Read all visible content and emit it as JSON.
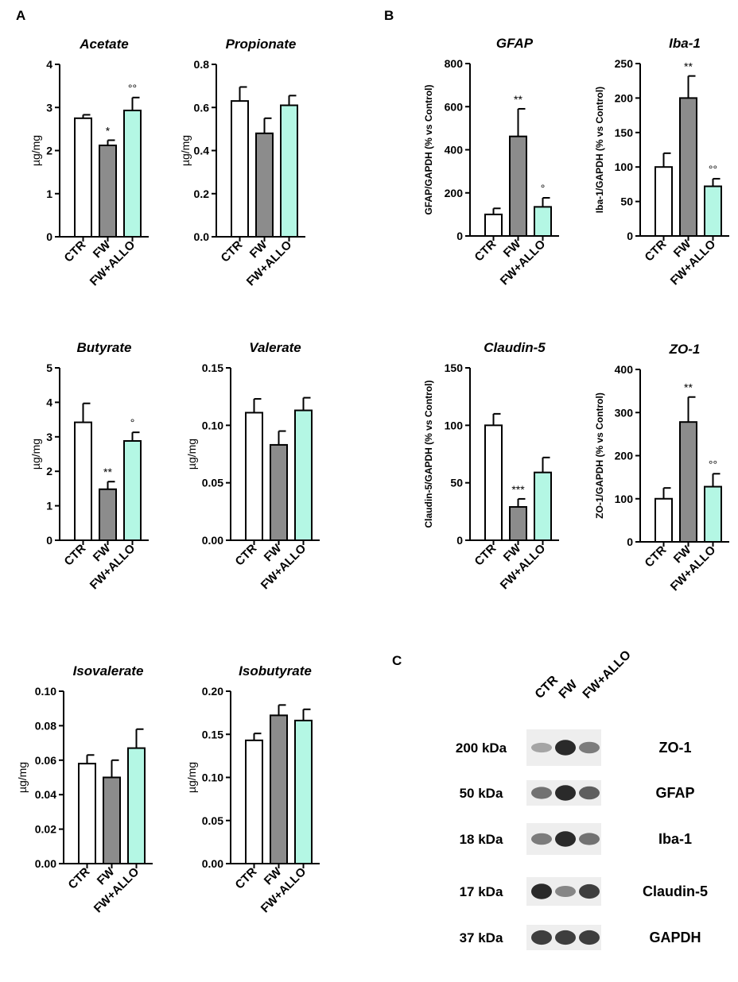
{
  "panels": {
    "a": "A",
    "b": "B",
    "c": "C"
  },
  "colors": {
    "ctr": "#ffffff",
    "fw": "#8c8c8c",
    "allo": "#b4f7e4",
    "stroke": "#000000"
  },
  "chart_data": [
    {
      "id": "acetate",
      "type": "bar",
      "title": "Acetate",
      "ylabel": "µg/mg",
      "categories": [
        "CTR",
        "FW",
        "FW+ALLO"
      ],
      "values": [
        2.75,
        2.12,
        2.93
      ],
      "errors": [
        0.08,
        0.12,
        0.3
      ],
      "sig": [
        "",
        "*",
        "°°"
      ],
      "ylim": [
        0,
        4
      ],
      "ticks": [
        "0",
        "1",
        "2",
        "3",
        "4"
      ]
    },
    {
      "id": "propionate",
      "type": "bar",
      "title": "Propionate",
      "ylabel": "µg/mg",
      "categories": [
        "CTR",
        "FW",
        "FW+ALLO"
      ],
      "values": [
        0.63,
        0.48,
        0.61
      ],
      "errors": [
        0.065,
        0.07,
        0.045
      ],
      "sig": [
        "",
        "",
        ""
      ],
      "ylim": [
        0,
        0.8
      ],
      "ticks": [
        "0.0",
        "0.2",
        "0.4",
        "0.6",
        "0.8"
      ]
    },
    {
      "id": "butyrate",
      "type": "bar",
      "title": "Butyrate",
      "ylabel": "µg/mg",
      "categories": [
        "CTR",
        "FW",
        "FW+ALLO"
      ],
      "values": [
        3.42,
        1.48,
        2.88
      ],
      "errors": [
        0.55,
        0.22,
        0.25
      ],
      "sig": [
        "",
        "**",
        "°"
      ],
      "ylim": [
        0,
        5
      ],
      "ticks": [
        "0",
        "1",
        "2",
        "3",
        "4",
        "5"
      ]
    },
    {
      "id": "valerate",
      "type": "bar",
      "title": "Valerate",
      "ylabel": "µg/mg",
      "categories": [
        "CTR",
        "FW",
        "FW+ALLO"
      ],
      "values": [
        0.111,
        0.083,
        0.113
      ],
      "errors": [
        0.012,
        0.012,
        0.011
      ],
      "sig": [
        "",
        "",
        ""
      ],
      "ylim": [
        0,
        0.15
      ],
      "ticks": [
        "0.00",
        "0.05",
        "0.10",
        "0.15"
      ]
    },
    {
      "id": "isovalerate",
      "type": "bar",
      "title": "Isovalerate",
      "ylabel": "µg/mg",
      "categories": [
        "CTR",
        "FW",
        "FW+ALLO"
      ],
      "values": [
        0.058,
        0.05,
        0.067
      ],
      "errors": [
        0.005,
        0.01,
        0.011
      ],
      "sig": [
        "",
        "",
        ""
      ],
      "ylim": [
        0,
        0.1
      ],
      "ticks": [
        "0.00",
        "0.02",
        "0.04",
        "0.06",
        "0.08",
        "0.10"
      ]
    },
    {
      "id": "isobutyrate",
      "type": "bar",
      "title": "Isobutyrate",
      "ylabel": "µg/mg",
      "categories": [
        "CTR",
        "FW",
        "FW+ALLO"
      ],
      "values": [
        0.143,
        0.172,
        0.166
      ],
      "errors": [
        0.008,
        0.012,
        0.013
      ],
      "sig": [
        "",
        "",
        ""
      ],
      "ylim": [
        0,
        0.2
      ],
      "ticks": [
        "0.00",
        "0.05",
        "0.10",
        "0.15",
        "0.20"
      ]
    },
    {
      "id": "gfap",
      "type": "bar",
      "title": "GFAP",
      "ylabel": "GFAP/GAPDH (% vs Control)",
      "categories": [
        "CTR",
        "FW",
        "FW+ALLO"
      ],
      "values": [
        100,
        462,
        135
      ],
      "errors": [
        28,
        128,
        42
      ],
      "sig": [
        "",
        "**",
        "°"
      ],
      "ylim": [
        0,
        800
      ],
      "ticks": [
        "0",
        "200",
        "400",
        "600",
        "800"
      ]
    },
    {
      "id": "iba1",
      "type": "bar",
      "title": "Iba-1",
      "ylabel": "Iba-1/GAPDH (% vs Control)",
      "categories": [
        "CTR",
        "FW",
        "FW+ALLO"
      ],
      "values": [
        100,
        200,
        72
      ],
      "errors": [
        20,
        32,
        11
      ],
      "sig": [
        "",
        "**",
        "°°"
      ],
      "ylim": [
        0,
        250
      ],
      "ticks": [
        "0",
        "50",
        "100",
        "150",
        "200",
        "250"
      ]
    },
    {
      "id": "claudin5",
      "type": "bar",
      "title": "Claudin-5",
      "ylabel": "Claudin-5/GAPDH (% vs Control)",
      "categories": [
        "CTR",
        "FW",
        "FW+ALLO"
      ],
      "values": [
        100,
        29,
        59
      ],
      "errors": [
        10,
        7,
        13
      ],
      "sig": [
        "",
        "***",
        ""
      ],
      "ylim": [
        0,
        150
      ],
      "ticks": [
        "0",
        "50",
        "100",
        "150"
      ]
    },
    {
      "id": "zo1",
      "type": "bar",
      "title": "ZO-1",
      "ylabel": "ZO-1/GAPDH (% vs Control)",
      "categories": [
        "CTR",
        "FW",
        "FW+ALLO"
      ],
      "values": [
        100,
        278,
        128
      ],
      "errors": [
        25,
        58,
        30
      ],
      "sig": [
        "",
        "**",
        "°°"
      ],
      "ylim": [
        0,
        400
      ],
      "ticks": [
        "0",
        "100",
        "200",
        "300",
        "400"
      ]
    }
  ],
  "blot": {
    "lanes": [
      "CTR",
      "FW",
      "FW+ALLO"
    ],
    "rows": [
      {
        "mw": "200 kDa",
        "protein": "ZO-1",
        "intensity": [
          0.35,
          0.95,
          0.55
        ]
      },
      {
        "mw": "50 kDa",
        "protein": "GFAP",
        "intensity": [
          0.6,
          0.95,
          0.7
        ]
      },
      {
        "mw": "18 kDa",
        "protein": "Iba-1",
        "intensity": [
          0.55,
          0.95,
          0.6
        ]
      },
      {
        "mw": "17 kDa",
        "protein": "Claudin-5",
        "intensity": [
          0.95,
          0.5,
          0.85
        ]
      },
      {
        "mw": "37 kDa",
        "protein": "GAPDH",
        "intensity": [
          0.85,
          0.85,
          0.85
        ]
      }
    ]
  }
}
